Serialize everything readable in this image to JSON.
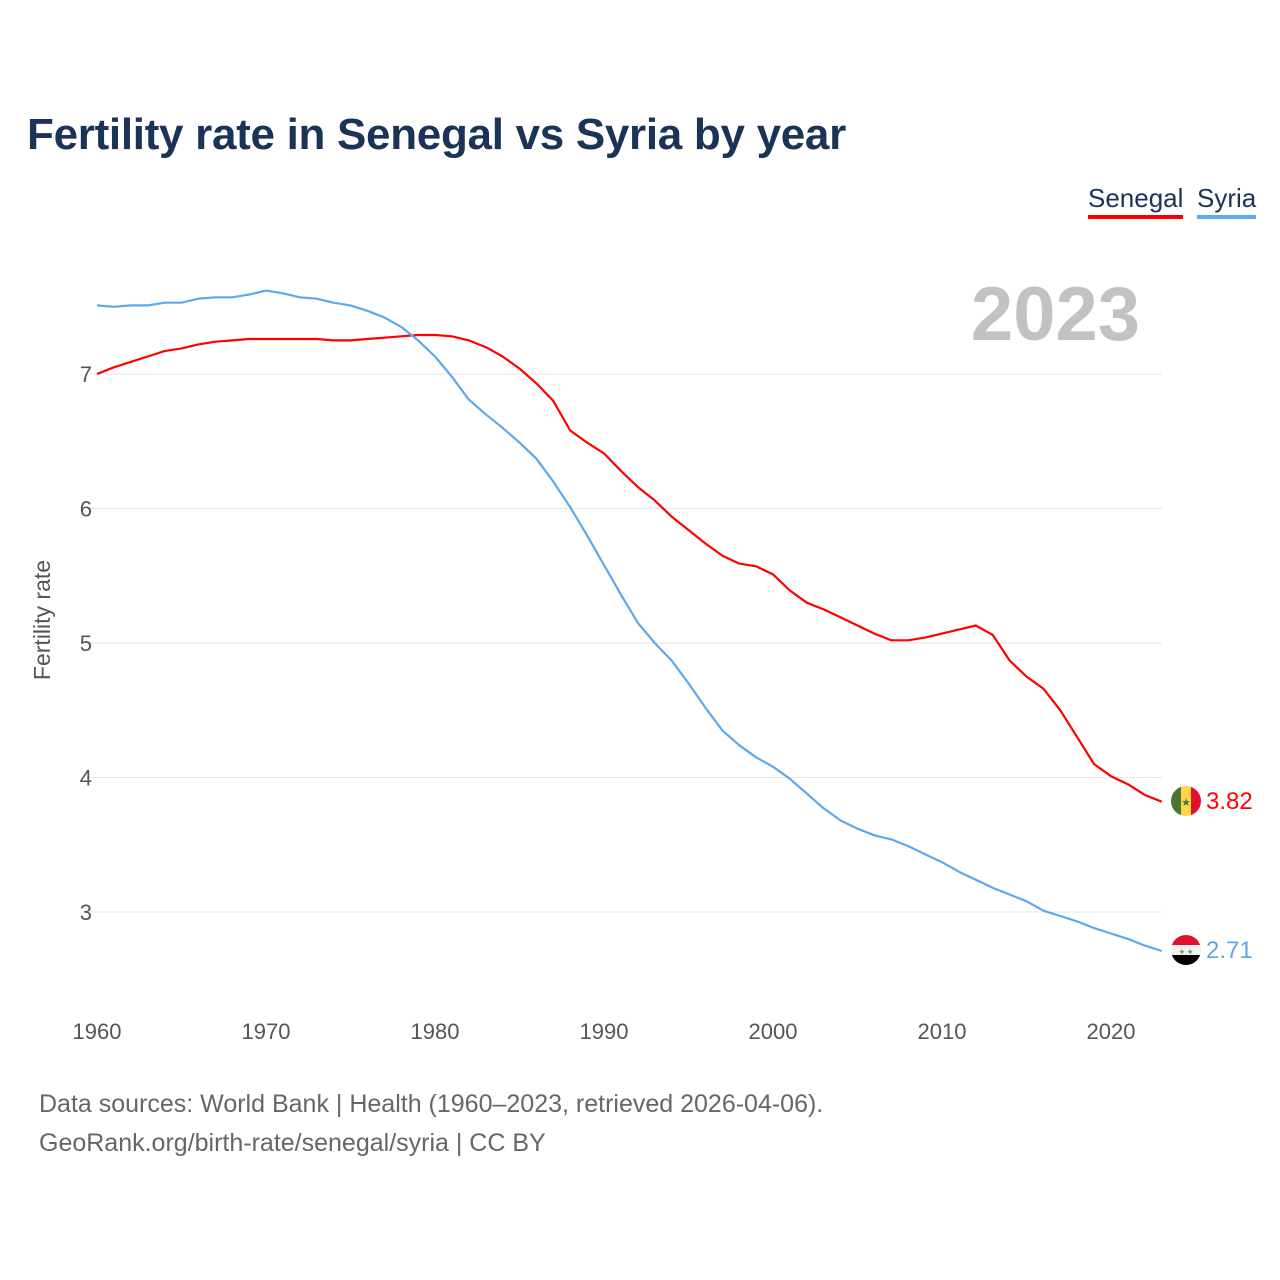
{
  "title": "Fertility rate in Senegal vs Syria by year",
  "legend": [
    {
      "label": "Senegal",
      "color": "#ff0000"
    },
    {
      "label": "Syria",
      "color": "#5da8ea"
    }
  ],
  "footer": {
    "line1": "Data sources: World Bank | Health (1960–2023, retrieved 2026-04-06).",
    "line2": "GeoRank.org/birth-rate/senegal/syria | CC BY"
  },
  "chart_data": {
    "type": "line",
    "title": "Fertility rate in Senegal vs Syria by year",
    "xlabel": "",
    "ylabel": "Fertility rate",
    "year_watermark": "2023",
    "xlim": [
      1960,
      2023
    ],
    "ylim": [
      2.45,
      7.75
    ],
    "xticks": [
      "1960",
      "1970",
      "1980",
      "1990",
      "2000",
      "2010",
      "2020"
    ],
    "yticks": [
      "3",
      "4",
      "5",
      "6",
      "7"
    ],
    "grid": true,
    "legend_position": "top-right",
    "x": [
      1960,
      1961,
      1962,
      1963,
      1964,
      1965,
      1966,
      1967,
      1968,
      1969,
      1970,
      1971,
      1972,
      1973,
      1974,
      1975,
      1976,
      1977,
      1978,
      1979,
      1980,
      1981,
      1982,
      1983,
      1984,
      1985,
      1986,
      1987,
      1988,
      1989,
      1990,
      1991,
      1992,
      1993,
      1994,
      1995,
      1996,
      1997,
      1998,
      1999,
      2000,
      2001,
      2002,
      2003,
      2004,
      2005,
      2006,
      2007,
      2008,
      2009,
      2010,
      2011,
      2012,
      2013,
      2014,
      2015,
      2016,
      2017,
      2018,
      2019,
      2020,
      2021,
      2022,
      2023
    ],
    "series": [
      {
        "name": "Senegal",
        "color": "#ff0000",
        "end_label": "3.82",
        "values": [
          7.0,
          7.05,
          7.09,
          7.13,
          7.17,
          7.19,
          7.22,
          7.24,
          7.25,
          7.26,
          7.26,
          7.26,
          7.26,
          7.26,
          7.25,
          7.25,
          7.26,
          7.27,
          7.28,
          7.29,
          7.29,
          7.28,
          7.25,
          7.2,
          7.13,
          7.04,
          6.93,
          6.8,
          6.58,
          6.49,
          6.41,
          6.28,
          6.16,
          6.06,
          5.94,
          5.84,
          5.74,
          5.65,
          5.59,
          5.57,
          5.51,
          5.39,
          5.3,
          5.25,
          5.19,
          5.13,
          5.07,
          5.02,
          5.02,
          5.04,
          5.07,
          5.1,
          5.13,
          5.06,
          4.87,
          4.75,
          4.66,
          4.5,
          4.3,
          4.1,
          4.01,
          3.95,
          3.87,
          3.82
        ]
      },
      {
        "name": "Syria",
        "color": "#5da8ea",
        "end_label": "2.71",
        "values": [
          7.51,
          7.5,
          7.51,
          7.51,
          7.53,
          7.53,
          7.56,
          7.57,
          7.57,
          7.59,
          7.62,
          7.6,
          7.57,
          7.56,
          7.53,
          7.51,
          7.47,
          7.42,
          7.35,
          7.25,
          7.13,
          6.98,
          6.81,
          6.7,
          6.6,
          6.49,
          6.37,
          6.2,
          6.01,
          5.8,
          5.58,
          5.36,
          5.15,
          5.0,
          4.87,
          4.7,
          4.52,
          4.35,
          4.24,
          4.15,
          4.08,
          3.99,
          3.88,
          3.77,
          3.68,
          3.62,
          3.57,
          3.54,
          3.49,
          3.43,
          3.37,
          3.3,
          3.24,
          3.18,
          3.13,
          3.08,
          3.01,
          2.97,
          2.93,
          2.88,
          2.84,
          2.8,
          2.75,
          2.71
        ]
      }
    ]
  }
}
